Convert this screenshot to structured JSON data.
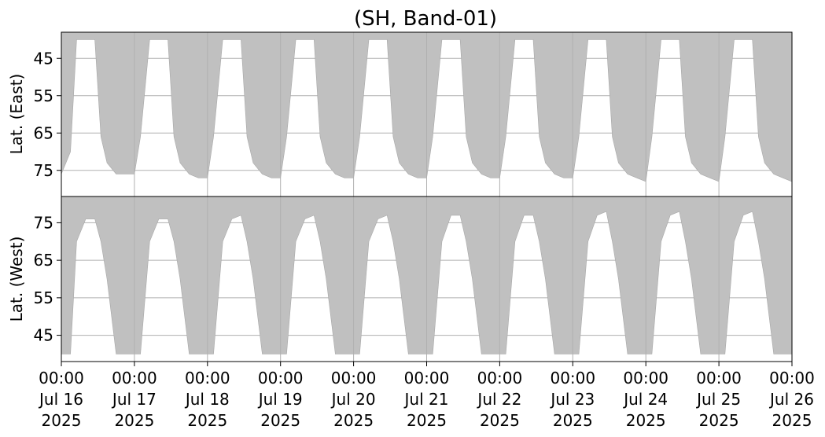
{
  "chart_data": {
    "type": "area",
    "title": "(SH, Band-01)",
    "fill_color": "#c0c0c0",
    "grid": true,
    "x_axis": {
      "ticks": [
        {
          "date": "2025-07-16",
          "time": "00:00",
          "day": "Jul 16",
          "year": "2025"
        },
        {
          "date": "2025-07-17",
          "time": "00:00",
          "day": "Jul 17",
          "year": "2025"
        },
        {
          "date": "2025-07-18",
          "time": "00:00",
          "day": "Jul 18",
          "year": "2025"
        },
        {
          "date": "2025-07-19",
          "time": "00:00",
          "day": "Jul 19",
          "year": "2025"
        },
        {
          "date": "2025-07-20",
          "time": "00:00",
          "day": "Jul 20",
          "year": "2025"
        },
        {
          "date": "2025-07-21",
          "time": "00:00",
          "day": "Jul 21",
          "year": "2025"
        },
        {
          "date": "2025-07-22",
          "time": "00:00",
          "day": "Jul 22",
          "year": "2025"
        },
        {
          "date": "2025-07-23",
          "time": "00:00",
          "day": "Jul 23",
          "year": "2025"
        },
        {
          "date": "2025-07-24",
          "time": "00:00",
          "day": "Jul 24",
          "year": "2025"
        },
        {
          "date": "2025-07-25",
          "time": "00:00",
          "day": "Jul 25",
          "year": "2025"
        },
        {
          "date": "2025-07-26",
          "time": "00:00",
          "day": "Jul 26",
          "year": "2025"
        }
      ],
      "xlim": [
        "2025-07-16 00:00",
        "2025-07-26 00:00"
      ]
    },
    "panels": [
      {
        "name": "east",
        "ylabel": "Lat. (East)",
        "yticks": [
          45,
          55,
          65,
          75
        ],
        "ylim": [
          38,
          82
        ],
        "inverted": true,
        "coverage": "shaded from the top latitude down to the boundary",
        "boundary_series": {
          "x": [
            "2025-07-16 00:00",
            "2025-07-16 03:00",
            "2025-07-16 05:00",
            "2025-07-16 08:00",
            "2025-07-16 11:00",
            "2025-07-16 13:00",
            "2025-07-16 15:00",
            "2025-07-16 18:00",
            "2025-07-16 21:00",
            "2025-07-17 00:00",
            "2025-07-17 02:00",
            "2025-07-17 05:00",
            "2025-07-17 08:00",
            "2025-07-17 11:00",
            "2025-07-17 13:00",
            "2025-07-17 15:00",
            "2025-07-17 18:00",
            "2025-07-17 21:00",
            "2025-07-18 00:00",
            "2025-07-18 02:00",
            "2025-07-18 05:00",
            "2025-07-18 08:00",
            "2025-07-18 11:00",
            "2025-07-18 13:00",
            "2025-07-18 15:00",
            "2025-07-18 18:00",
            "2025-07-18 21:00",
            "2025-07-19 00:00",
            "2025-07-19 02:00",
            "2025-07-19 05:00",
            "2025-07-19 08:00",
            "2025-07-19 11:00",
            "2025-07-19 13:00",
            "2025-07-19 15:00",
            "2025-07-19 18:00",
            "2025-07-19 21:00",
            "2025-07-20 00:00",
            "2025-07-20 02:00",
            "2025-07-20 05:00",
            "2025-07-20 08:00",
            "2025-07-20 11:00",
            "2025-07-20 13:00",
            "2025-07-20 15:00",
            "2025-07-20 18:00",
            "2025-07-20 21:00",
            "2025-07-21 00:00",
            "2025-07-21 02:00",
            "2025-07-21 05:00",
            "2025-07-21 08:00",
            "2025-07-21 11:00",
            "2025-07-21 13:00",
            "2025-07-21 15:00",
            "2025-07-21 18:00",
            "2025-07-21 21:00",
            "2025-07-22 00:00",
            "2025-07-22 02:00",
            "2025-07-22 05:00",
            "2025-07-22 08:00",
            "2025-07-22 11:00",
            "2025-07-22 13:00",
            "2025-07-22 15:00",
            "2025-07-22 18:00",
            "2025-07-22 21:00",
            "2025-07-23 00:00",
            "2025-07-23 02:00",
            "2025-07-23 05:00",
            "2025-07-23 08:00",
            "2025-07-23 11:00",
            "2025-07-23 13:00",
            "2025-07-23 15:00",
            "2025-07-23 18:00",
            "2025-07-23 21:00",
            "2025-07-24 00:00",
            "2025-07-24 02:00",
            "2025-07-24 05:00",
            "2025-07-24 08:00",
            "2025-07-24 11:00",
            "2025-07-24 13:00",
            "2025-07-24 15:00",
            "2025-07-24 18:00",
            "2025-07-24 21:00",
            "2025-07-25 00:00",
            "2025-07-25 02:00",
            "2025-07-25 05:00",
            "2025-07-25 08:00",
            "2025-07-25 11:00",
            "2025-07-25 13:00",
            "2025-07-25 15:00",
            "2025-07-25 18:00",
            "2025-07-25 21:00",
            "2025-07-26 00:00"
          ],
          "y": [
            76,
            70,
            40,
            40,
            40,
            66,
            73,
            76,
            76,
            76,
            66,
            40,
            40,
            40,
            66,
            73,
            76,
            77,
            77,
            66,
            40,
            40,
            40,
            66,
            73,
            76,
            77,
            77,
            66,
            40,
            40,
            40,
            66,
            73,
            76,
            77,
            77,
            66,
            40,
            40,
            40,
            66,
            73,
            76,
            77,
            77,
            66,
            40,
            40,
            40,
            66,
            73,
            76,
            77,
            77,
            66,
            40,
            40,
            40,
            66,
            73,
            76,
            77,
            77,
            66,
            40,
            40,
            40,
            66,
            73,
            76,
            77,
            78,
            66,
            40,
            40,
            40,
            66,
            73,
            76,
            77,
            78,
            66,
            40,
            40,
            40,
            66,
            73,
            76,
            77,
            78
          ]
        }
      },
      {
        "name": "west",
        "ylabel": "Lat. (West)",
        "yticks": [
          45,
          55,
          65,
          75
        ],
        "ylim": [
          38,
          82
        ],
        "inverted": false,
        "coverage": "shaded from the top latitude down to the boundary",
        "boundary_series": {
          "x": [
            "2025-07-16 00:00",
            "2025-07-16 03:00",
            "2025-07-16 05:00",
            "2025-07-16 08:00",
            "2025-07-16 11:00",
            "2025-07-16 13:00",
            "2025-07-16 15:00",
            "2025-07-16 18:00",
            "2025-07-16 21:00",
            "2025-07-17 00:00",
            "2025-07-17 02:00",
            "2025-07-17 05:00",
            "2025-07-17 08:00",
            "2025-07-17 11:00",
            "2025-07-17 13:00",
            "2025-07-17 15:00",
            "2025-07-17 18:00",
            "2025-07-17 21:00",
            "2025-07-18 00:00",
            "2025-07-18 02:00",
            "2025-07-18 05:00",
            "2025-07-18 08:00",
            "2025-07-18 11:00",
            "2025-07-18 13:00",
            "2025-07-18 15:00",
            "2025-07-18 18:00",
            "2025-07-18 21:00",
            "2025-07-19 00:00",
            "2025-07-19 02:00",
            "2025-07-19 05:00",
            "2025-07-19 08:00",
            "2025-07-19 11:00",
            "2025-07-19 13:00",
            "2025-07-19 15:00",
            "2025-07-19 18:00",
            "2025-07-19 21:00",
            "2025-07-20 00:00",
            "2025-07-20 02:00",
            "2025-07-20 05:00",
            "2025-07-20 08:00",
            "2025-07-20 11:00",
            "2025-07-20 13:00",
            "2025-07-20 15:00",
            "2025-07-20 18:00",
            "2025-07-20 21:00",
            "2025-07-21 00:00",
            "2025-07-21 02:00",
            "2025-07-21 05:00",
            "2025-07-21 08:00",
            "2025-07-21 11:00",
            "2025-07-21 13:00",
            "2025-07-21 15:00",
            "2025-07-21 18:00",
            "2025-07-21 21:00",
            "2025-07-22 00:00",
            "2025-07-22 02:00",
            "2025-07-22 05:00",
            "2025-07-22 08:00",
            "2025-07-22 11:00",
            "2025-07-22 13:00",
            "2025-07-22 15:00",
            "2025-07-22 18:00",
            "2025-07-22 21:00",
            "2025-07-23 00:00",
            "2025-07-23 02:00",
            "2025-07-23 05:00",
            "2025-07-23 08:00",
            "2025-07-23 11:00",
            "2025-07-23 13:00",
            "2025-07-23 15:00",
            "2025-07-23 18:00",
            "2025-07-23 21:00",
            "2025-07-24 00:00",
            "2025-07-24 02:00",
            "2025-07-24 05:00",
            "2025-07-24 08:00",
            "2025-07-24 11:00",
            "2025-07-24 13:00",
            "2025-07-24 15:00",
            "2025-07-24 18:00",
            "2025-07-24 21:00",
            "2025-07-25 00:00",
            "2025-07-25 02:00",
            "2025-07-25 05:00",
            "2025-07-25 08:00",
            "2025-07-25 11:00",
            "2025-07-25 13:00",
            "2025-07-25 15:00",
            "2025-07-25 18:00",
            "2025-07-25 21:00",
            "2025-07-26 00:00"
          ],
          "y": [
            40,
            40,
            70,
            76,
            76,
            70,
            60,
            40,
            40,
            40,
            40,
            70,
            76,
            76,
            70,
            60,
            40,
            40,
            40,
            40,
            70,
            76,
            77,
            70,
            60,
            40,
            40,
            40,
            40,
            70,
            76,
            77,
            70,
            60,
            40,
            40,
            40,
            40,
            70,
            76,
            77,
            70,
            60,
            40,
            40,
            40,
            40,
            70,
            77,
            77,
            70,
            60,
            40,
            40,
            40,
            40,
            70,
            77,
            77,
            70,
            60,
            40,
            40,
            40,
            40,
            70,
            77,
            78,
            70,
            60,
            40,
            40,
            40,
            40,
            70,
            77,
            78,
            70,
            60,
            40,
            40,
            40,
            40,
            70,
            77,
            78,
            70,
            60,
            40,
            40,
            40
          ]
        }
      }
    ]
  }
}
